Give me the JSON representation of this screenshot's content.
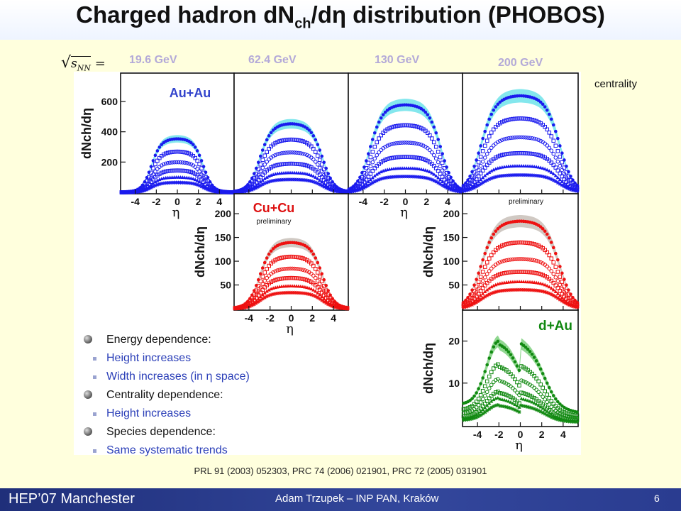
{
  "slide": {
    "title_main": "Charged hadron dN",
    "title_sub": "ch",
    "title_rest": "/dη distribution (PHOBOS)",
    "references": "PRL 91 (2003) 052303,  PRC 74 (2006) 021901, PRC 72 (2005) 031901",
    "footer_left": "HEP’07 Manchester",
    "footer_center": "Adam Trzupek – INP PAN, Kraków",
    "page_number": "6",
    "bullets": [
      {
        "level": 1,
        "text": "Energy dependence:"
      },
      {
        "level": 2,
        "text": "Height increases"
      },
      {
        "level": 2,
        "text": "Width increases (in η space)"
      },
      {
        "level": 1,
        "text": "Centrality dependence:"
      },
      {
        "level": 2,
        "text": "Height increases"
      },
      {
        "level": 1,
        "text": "Species dependence:"
      },
      {
        "level": 2,
        "text": "Same systematic trends"
      }
    ]
  },
  "chart_data": {
    "type": "scatter",
    "sqrt_label": "s",
    "sqrt_sub": "NN",
    "energies": [
      "19.6 GeV",
      "62.4 GeV",
      "130 GeV",
      "200 GeV"
    ],
    "centrality_label": "centrality",
    "xlabel": "η",
    "ylabel": "dNch/dη",
    "x_ticks": [
      -4,
      -2,
      0,
      2,
      4
    ],
    "colors": {
      "AuAu": "#1a1aee",
      "AuAu_band": "#6fe3ea",
      "CuCu": "#ee1111",
      "CuCu_band": "#c8c0b8",
      "dAu": "#128a12",
      "dAu_band": "#7ed07e",
      "energy_label": "#b3a9d8"
    },
    "panels": [
      {
        "system": "Au+Au",
        "energy": "19.6 GeV",
        "ylim": [
          0,
          750
        ],
        "yticks": [
          200,
          400,
          600
        ],
        "label": "Au+Au",
        "plateaus": [
          355,
          270,
          200,
          145,
          100,
          65
        ],
        "halfwidth": 2.5,
        "edge": 0.45
      },
      {
        "system": "Au+Au",
        "energy": "62.4 GeV",
        "ylim": [
          0,
          750
        ],
        "yticks": [],
        "plateaus": [
          455,
          350,
          265,
          190,
          130,
          85
        ],
        "halfwidth": 3.0,
        "edge": 0.55
      },
      {
        "system": "Au+Au",
        "energy": "130 GeV",
        "ylim": [
          0,
          750
        ],
        "yticks": [],
        "plateaus": [
          580,
          445,
          330,
          235,
          160,
          105
        ],
        "halfwidth": 3.4,
        "edge": 0.6
      },
      {
        "system": "Au+Au",
        "energy": "200 GeV",
        "ylim": [
          0,
          750
        ],
        "yticks": [],
        "plateaus": [
          640,
          490,
          365,
          260,
          175,
          115
        ],
        "halfwidth": 3.7,
        "edge": 0.65
      },
      {
        "system": "Cu+Cu",
        "energy": "62.4 GeV",
        "ylim": [
          0,
          230
        ],
        "yticks": [
          50,
          100,
          150,
          200
        ],
        "label": "Cu+Cu",
        "note": "preliminary",
        "plateaus": [
          140,
          110,
          85,
          65,
          48,
          34
        ],
        "halfwidth": 3.0,
        "edge": 0.55
      },
      {
        "system": "Cu+Cu",
        "energy": "200 GeV",
        "ylim": [
          0,
          230
        ],
        "yticks": [
          50,
          100,
          150,
          200
        ],
        "note": "preliminary",
        "plateaus": [
          185,
          140,
          105,
          78,
          57,
          40
        ],
        "halfwidth": 3.7,
        "edge": 0.65
      },
      {
        "system": "d+Au",
        "energy": "200 GeV",
        "ylim": [
          0,
          26
        ],
        "yticks": [
          10,
          20
        ],
        "label": "d+Au",
        "peaks": [
          20,
          14.5,
          11,
          8,
          6.5,
          4.8
        ],
        "xpeak": -2.0,
        "halfwidth": 3.5,
        "edge": 0.7
      }
    ]
  }
}
